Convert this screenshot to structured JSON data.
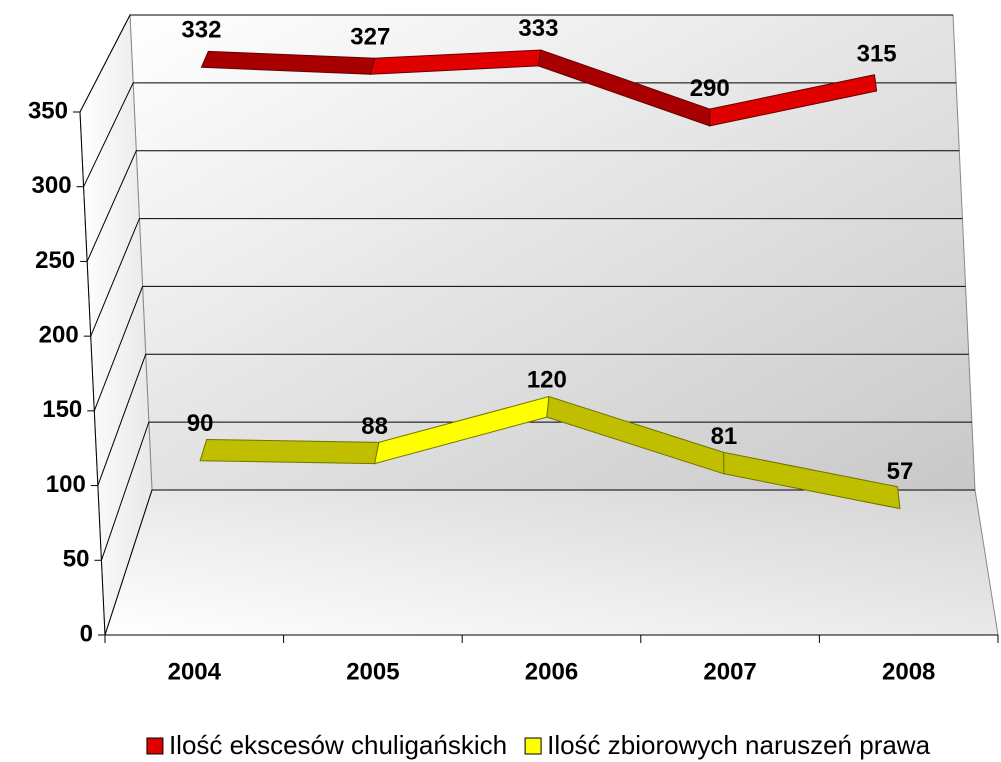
{
  "chart_data": {
    "type": "line3d",
    "categories": [
      "2004",
      "2005",
      "2006",
      "2007",
      "2008"
    ],
    "series": [
      {
        "name": "Ilość ekscesów chuligańskich",
        "color": "#e00000",
        "values": [
          332,
          327,
          333,
          290,
          315
        ]
      },
      {
        "name": "Ilość zbiorowych naruszeń prawa",
        "color": "#ffff00",
        "values": [
          90,
          88,
          120,
          81,
          57
        ]
      }
    ],
    "ylim": [
      0,
      350
    ],
    "yticks": [
      0,
      50,
      100,
      150,
      200,
      250,
      300,
      350
    ],
    "grid": true,
    "legend": "bottom"
  }
}
